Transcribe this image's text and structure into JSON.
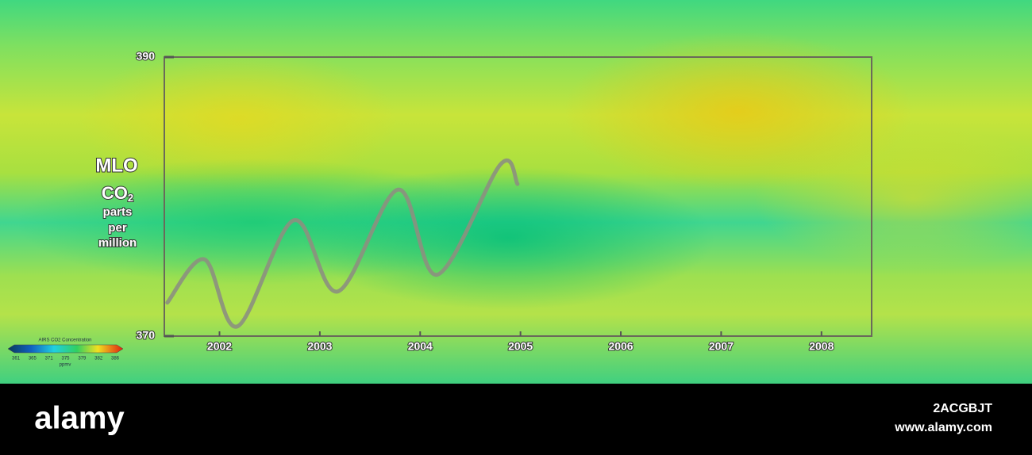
{
  "chart_data": {
    "type": "line",
    "y_label": {
      "title": "MLO",
      "gas": "CO",
      "subscript": "2",
      "unit_lines": [
        "parts",
        "per",
        "million"
      ]
    },
    "x": [
      2001.48,
      2001.85,
      2002.18,
      2002.74,
      2003.18,
      2003.78,
      2004.17,
      2004.8,
      2004.97
    ],
    "series": [
      {
        "color": "#8c9080",
        "values": [
          372.4,
          375.5,
          370.7,
          378.3,
          373.2,
          380.5,
          374.4,
          382.3,
          380.9
        ]
      }
    ],
    "xlim": [
      2001.45,
      2008.5
    ],
    "xticks": [
      2002,
      2003,
      2004,
      2005,
      2006,
      2007,
      2008
    ],
    "ylim": [
      370,
      390
    ],
    "yticks": [
      370,
      390
    ],
    "grid": false
  },
  "colorbar": {
    "title": "AIRS CO2 Concentration",
    "ticks": [
      361,
      365,
      371,
      375,
      379,
      382,
      386
    ],
    "unit": "ppmv"
  },
  "footer": {
    "logo": "alamy",
    "image_id": "2ACGBJT",
    "url": "www.alamy.com"
  }
}
